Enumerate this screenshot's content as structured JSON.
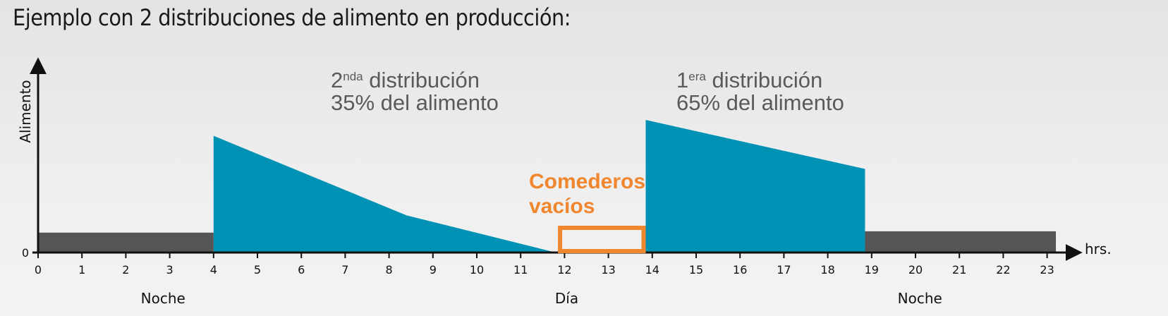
{
  "title": "Ejemplo con 2 distribuciones de alimento en producción:",
  "chart_data": {
    "type": "area",
    "ylabel": "Alimento",
    "xlabel": "hrs.",
    "y_zero_label": "0",
    "x_ticks": [
      "0",
      "1",
      "2",
      "3",
      "4",
      "5",
      "6",
      "7",
      "8",
      "9",
      "10",
      "11",
      "12",
      "13",
      "14",
      "15",
      "16",
      "17",
      "18",
      "19",
      "20",
      "21",
      "22",
      "23"
    ],
    "periods": [
      {
        "label": "Noche",
        "center": 2.85
      },
      {
        "label": "Día",
        "center": 12.05
      },
      {
        "label": "Noche",
        "center": 20.1
      }
    ],
    "baseline_bars": [
      {
        "x": [
          0,
          4
        ],
        "value": 15,
        "color": "#555555"
      },
      {
        "x": [
          18.85,
          23.2
        ],
        "value": 16,
        "color": "#555555"
      }
    ],
    "series": [
      {
        "points": [
          [
            4,
            88
          ],
          [
            8.4,
            28
          ],
          [
            11.8,
            0
          ]
        ],
        "color": "#0092b4"
      },
      {
        "points": [
          [
            13.85,
            100
          ],
          [
            18.85,
            63
          ]
        ],
        "color": "#0092b4"
      }
    ],
    "annotations": [
      {
        "base": "2",
        "sup": "nda",
        "text": " distribución",
        "line2": "35% del alimento"
      },
      {
        "base": "1",
        "sup": "era",
        "text": " distribución",
        "line2": "65% del alimento"
      }
    ],
    "empty_label": [
      "Comederos",
      "vacíos"
    ],
    "empty_range": [
      11.85,
      13.85
    ],
    "accent_color": "#f0862d"
  }
}
